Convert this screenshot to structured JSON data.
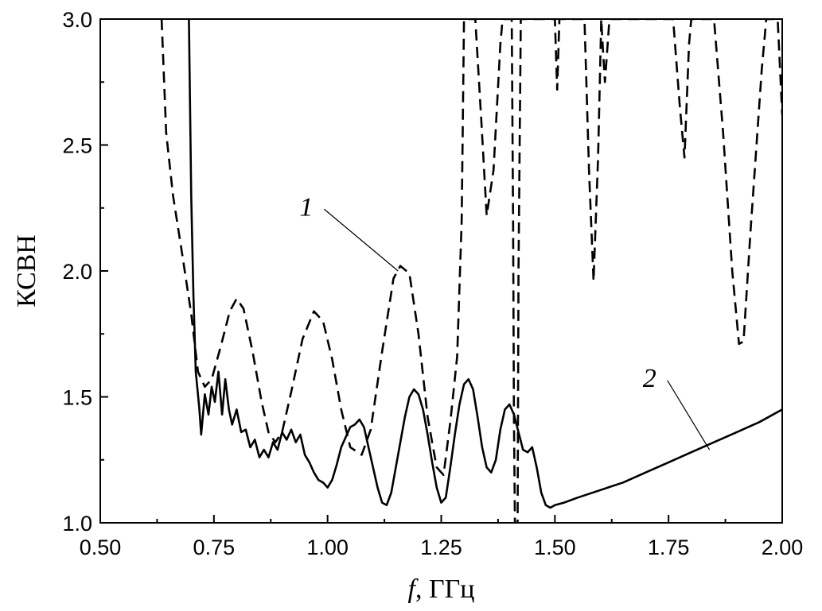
{
  "chart_data": {
    "type": "line",
    "title": "",
    "xlabel_var": "f",
    "xlabel_unit": ", ГГц",
    "ylabel": "КСВН",
    "xlim": [
      0.5,
      2.0
    ],
    "ylim": [
      1.0,
      3.0
    ],
    "xticks": [
      "0.50",
      "0.75",
      "1.00",
      "1.25",
      "1.50",
      "1.75",
      "2.00"
    ],
    "yticks": [
      "1.0",
      "1.5",
      "2.0",
      "2.5",
      "3.0"
    ],
    "grid": false,
    "legend": "none",
    "series": [
      {
        "label": "1",
        "style": "dashed",
        "color": "#000000",
        "points": [
          [
            0.635,
            3.0
          ],
          [
            0.645,
            2.55
          ],
          [
            0.66,
            2.3
          ],
          [
            0.68,
            2.07
          ],
          [
            0.7,
            1.83
          ],
          [
            0.715,
            1.6
          ],
          [
            0.73,
            1.54
          ],
          [
            0.745,
            1.57
          ],
          [
            0.765,
            1.7
          ],
          [
            0.785,
            1.84
          ],
          [
            0.8,
            1.89
          ],
          [
            0.815,
            1.85
          ],
          [
            0.835,
            1.68
          ],
          [
            0.855,
            1.48
          ],
          [
            0.87,
            1.36
          ],
          [
            0.885,
            1.32
          ],
          [
            0.9,
            1.36
          ],
          [
            0.92,
            1.52
          ],
          [
            0.945,
            1.73
          ],
          [
            0.97,
            1.84
          ],
          [
            0.99,
            1.8
          ],
          [
            1.01,
            1.65
          ],
          [
            1.03,
            1.45
          ],
          [
            1.05,
            1.3
          ],
          [
            1.075,
            1.27
          ],
          [
            1.095,
            1.37
          ],
          [
            1.12,
            1.68
          ],
          [
            1.145,
            1.97
          ],
          [
            1.16,
            2.02
          ],
          [
            1.18,
            1.99
          ],
          [
            1.2,
            1.75
          ],
          [
            1.22,
            1.42
          ],
          [
            1.24,
            1.22
          ],
          [
            1.255,
            1.19
          ],
          [
            1.27,
            1.4
          ],
          [
            1.285,
            1.66
          ],
          [
            1.295,
            2.2
          ],
          [
            1.3,
            3.0
          ],
          [
            1.325,
            3.0
          ],
          [
            1.338,
            2.6
          ],
          [
            1.35,
            2.22
          ],
          [
            1.365,
            2.4
          ],
          [
            1.38,
            2.9
          ],
          [
            1.385,
            3.0
          ],
          [
            1.405,
            3.0
          ],
          [
            1.408,
            2.2
          ],
          [
            1.41,
            1.4
          ],
          [
            1.412,
            1.0
          ],
          [
            1.418,
            1.0
          ],
          [
            1.42,
            2.0
          ],
          [
            1.425,
            3.0
          ],
          [
            1.5,
            3.0
          ],
          [
            1.505,
            2.72
          ],
          [
            1.51,
            3.0
          ],
          [
            1.565,
            3.0
          ],
          [
            1.575,
            2.4
          ],
          [
            1.585,
            1.96
          ],
          [
            1.595,
            2.45
          ],
          [
            1.602,
            3.0
          ],
          [
            1.605,
            2.9
          ],
          [
            1.61,
            2.75
          ],
          [
            1.62,
            3.0
          ],
          [
            1.76,
            3.0
          ],
          [
            1.775,
            2.65
          ],
          [
            1.785,
            2.45
          ],
          [
            1.795,
            2.9
          ],
          [
            1.8,
            3.0
          ],
          [
            1.85,
            3.0
          ],
          [
            1.87,
            2.55
          ],
          [
            1.89,
            2.0
          ],
          [
            1.905,
            1.71
          ],
          [
            1.915,
            1.72
          ],
          [
            1.93,
            2.15
          ],
          [
            1.955,
            2.8
          ],
          [
            1.965,
            3.0
          ],
          [
            1.99,
            3.0
          ],
          [
            2.0,
            2.62
          ]
        ]
      },
      {
        "label": "2",
        "style": "solid",
        "color": "#000000",
        "points": [
          [
            0.695,
            3.0
          ],
          [
            0.7,
            2.3
          ],
          [
            0.705,
            1.9
          ],
          [
            0.71,
            1.6
          ],
          [
            0.718,
            1.45
          ],
          [
            0.722,
            1.35
          ],
          [
            0.73,
            1.51
          ],
          [
            0.738,
            1.43
          ],
          [
            0.745,
            1.54
          ],
          [
            0.752,
            1.48
          ],
          [
            0.76,
            1.6
          ],
          [
            0.768,
            1.43
          ],
          [
            0.775,
            1.57
          ],
          [
            0.783,
            1.45
          ],
          [
            0.79,
            1.39
          ],
          [
            0.8,
            1.45
          ],
          [
            0.81,
            1.36
          ],
          [
            0.82,
            1.37
          ],
          [
            0.83,
            1.3
          ],
          [
            0.84,
            1.33
          ],
          [
            0.85,
            1.26
          ],
          [
            0.86,
            1.29
          ],
          [
            0.87,
            1.26
          ],
          [
            0.88,
            1.32
          ],
          [
            0.89,
            1.29
          ],
          [
            0.9,
            1.36
          ],
          [
            0.91,
            1.33
          ],
          [
            0.92,
            1.37
          ],
          [
            0.93,
            1.32
          ],
          [
            0.94,
            1.35
          ],
          [
            0.95,
            1.27
          ],
          [
            0.96,
            1.24
          ],
          [
            0.97,
            1.2
          ],
          [
            0.98,
            1.17
          ],
          [
            0.99,
            1.16
          ],
          [
            1.0,
            1.14
          ],
          [
            1.01,
            1.17
          ],
          [
            1.02,
            1.23
          ],
          [
            1.03,
            1.3
          ],
          [
            1.04,
            1.34
          ],
          [
            1.05,
            1.38
          ],
          [
            1.06,
            1.39
          ],
          [
            1.07,
            1.41
          ],
          [
            1.08,
            1.38
          ],
          [
            1.09,
            1.3
          ],
          [
            1.1,
            1.22
          ],
          [
            1.11,
            1.14
          ],
          [
            1.12,
            1.08
          ],
          [
            1.13,
            1.07
          ],
          [
            1.14,
            1.12
          ],
          [
            1.15,
            1.22
          ],
          [
            1.16,
            1.32
          ],
          [
            1.17,
            1.42
          ],
          [
            1.18,
            1.5
          ],
          [
            1.19,
            1.53
          ],
          [
            1.2,
            1.51
          ],
          [
            1.21,
            1.45
          ],
          [
            1.22,
            1.35
          ],
          [
            1.23,
            1.24
          ],
          [
            1.24,
            1.14
          ],
          [
            1.25,
            1.08
          ],
          [
            1.26,
            1.1
          ],
          [
            1.27,
            1.22
          ],
          [
            1.28,
            1.35
          ],
          [
            1.29,
            1.47
          ],
          [
            1.3,
            1.55
          ],
          [
            1.31,
            1.57
          ],
          [
            1.32,
            1.53
          ],
          [
            1.33,
            1.42
          ],
          [
            1.34,
            1.3
          ],
          [
            1.35,
            1.22
          ],
          [
            1.36,
            1.2
          ],
          [
            1.37,
            1.25
          ],
          [
            1.38,
            1.37
          ],
          [
            1.39,
            1.45
          ],
          [
            1.4,
            1.47
          ],
          [
            1.41,
            1.43
          ],
          [
            1.42,
            1.36
          ],
          [
            1.43,
            1.29
          ],
          [
            1.44,
            1.28
          ],
          [
            1.45,
            1.3
          ],
          [
            1.46,
            1.22
          ],
          [
            1.47,
            1.12
          ],
          [
            1.48,
            1.07
          ],
          [
            1.49,
            1.06
          ],
          [
            1.5,
            1.07
          ],
          [
            1.52,
            1.08
          ],
          [
            1.55,
            1.1
          ],
          [
            1.6,
            1.13
          ],
          [
            1.65,
            1.16
          ],
          [
            1.7,
            1.2
          ],
          [
            1.75,
            1.24
          ],
          [
            1.8,
            1.28
          ],
          [
            1.85,
            1.32
          ],
          [
            1.9,
            1.36
          ],
          [
            1.95,
            1.4
          ],
          [
            2.0,
            1.45
          ]
        ]
      }
    ],
    "annotations": [
      {
        "text": "1",
        "xy": [
          1.155,
          2.0
        ],
        "xytext": [
          0.975,
          2.22
        ]
      },
      {
        "text": "2",
        "xy": [
          1.84,
          1.29
        ],
        "xytext": [
          1.73,
          1.54
        ]
      }
    ]
  }
}
